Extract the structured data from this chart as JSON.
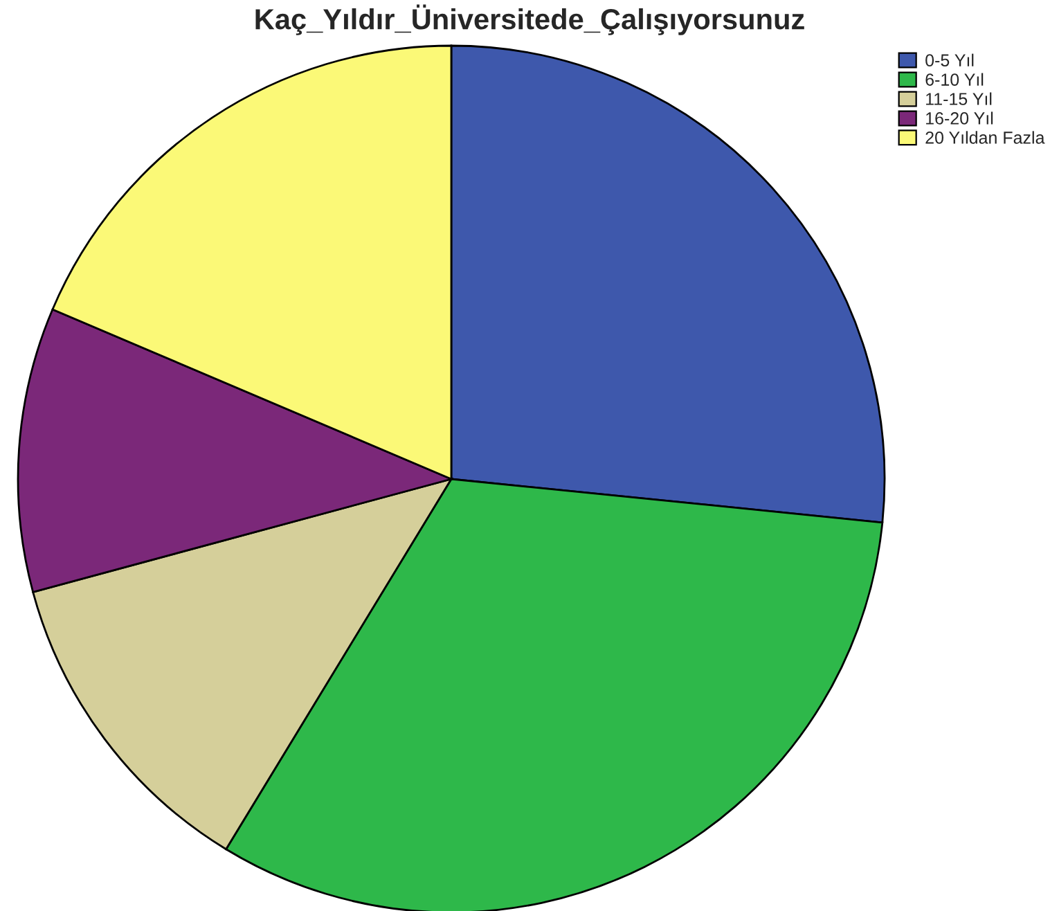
{
  "chart_data": {
    "type": "pie",
    "title": "Kaç_Yıldır_Üniversitede_Çalışıyorsunuz",
    "categories": [
      "0-5 Yıl",
      "6-10 Yıl",
      "11-15 Yıl",
      "16-20 Yıl",
      "20 Yıldan Fazla"
    ],
    "values": [
      26.6,
      32.1,
      12.1,
      10.6,
      18.6
    ],
    "colors": [
      "#3e58ac",
      "#2eb84a",
      "#d5cf9a",
      "#7b2879",
      "#fbf977"
    ],
    "legend": "top right"
  }
}
